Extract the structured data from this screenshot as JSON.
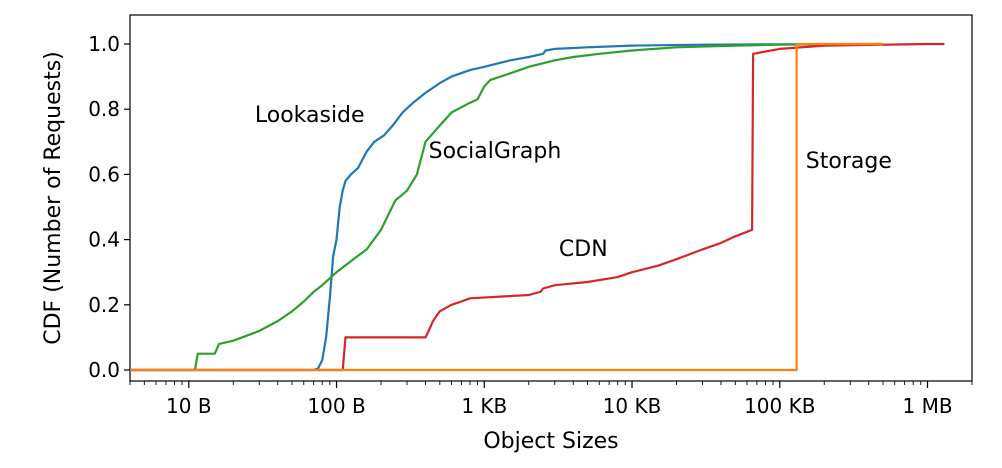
{
  "chart_data": {
    "type": "line",
    "xlabel": "Object Sizes",
    "ylabel": "CDF (Number of Requests)",
    "x_scale": "log",
    "x_unit": "bytes",
    "xlim": [
      4,
      2000000
    ],
    "ylim": [
      0,
      1.0
    ],
    "x_ticks": [
      {
        "value": 10,
        "label": "10 B"
      },
      {
        "value": 100,
        "label": "100 B"
      },
      {
        "value": 1000,
        "label": "1 KB"
      },
      {
        "value": 10000,
        "label": "10 KB"
      },
      {
        "value": 100000,
        "label": "100 KB"
      },
      {
        "value": 1000000,
        "label": "1 MB"
      }
    ],
    "y_ticks": [
      {
        "value": 0.0,
        "label": "0.0"
      },
      {
        "value": 0.2,
        "label": "0.2"
      },
      {
        "value": 0.4,
        "label": "0.4"
      },
      {
        "value": 0.6,
        "label": "0.6"
      },
      {
        "value": 0.8,
        "label": "0.8"
      },
      {
        "value": 1.0,
        "label": "1.0"
      }
    ],
    "grid": false,
    "legend": "none",
    "series": [
      {
        "name": "Lookaside",
        "color": "#1f77b4",
        "label_at": [
          28,
          0.76
        ],
        "points": [
          [
            4,
            0
          ],
          [
            70,
            0
          ],
          [
            75,
            0.005
          ],
          [
            80,
            0.03
          ],
          [
            85,
            0.1
          ],
          [
            90,
            0.22
          ],
          [
            95,
            0.35
          ],
          [
            100,
            0.4
          ],
          [
            105,
            0.5
          ],
          [
            110,
            0.55
          ],
          [
            115,
            0.58
          ],
          [
            125,
            0.6
          ],
          [
            140,
            0.62
          ],
          [
            160,
            0.67
          ],
          [
            180,
            0.7
          ],
          [
            210,
            0.72
          ],
          [
            240,
            0.75
          ],
          [
            280,
            0.79
          ],
          [
            330,
            0.82
          ],
          [
            400,
            0.85
          ],
          [
            500,
            0.88
          ],
          [
            600,
            0.9
          ],
          [
            800,
            0.92
          ],
          [
            1000,
            0.93
          ],
          [
            1500,
            0.95
          ],
          [
            2000,
            0.96
          ],
          [
            2500,
            0.97
          ],
          [
            2600,
            0.98
          ],
          [
            3000,
            0.985
          ],
          [
            5000,
            0.99
          ],
          [
            10000,
            0.995
          ],
          [
            30000,
            0.998
          ],
          [
            100000,
            0.999
          ],
          [
            500000,
            1.0
          ]
        ]
      },
      {
        "name": "SocialGraph",
        "color": "#2ca02c",
        "label_at": [
          420,
          0.65
        ],
        "points": [
          [
            4,
            0
          ],
          [
            11,
            0
          ],
          [
            11.5,
            0.05
          ],
          [
            15,
            0.05
          ],
          [
            16,
            0.08
          ],
          [
            20,
            0.09
          ],
          [
            30,
            0.12
          ],
          [
            40,
            0.15
          ],
          [
            50,
            0.18
          ],
          [
            60,
            0.21
          ],
          [
            70,
            0.24
          ],
          [
            80,
            0.26
          ],
          [
            100,
            0.3
          ],
          [
            130,
            0.34
          ],
          [
            160,
            0.37
          ],
          [
            200,
            0.43
          ],
          [
            250,
            0.52
          ],
          [
            300,
            0.55
          ],
          [
            350,
            0.6
          ],
          [
            400,
            0.7
          ],
          [
            500,
            0.75
          ],
          [
            600,
            0.79
          ],
          [
            800,
            0.82
          ],
          [
            900,
            0.83
          ],
          [
            1000,
            0.87
          ],
          [
            1100,
            0.89
          ],
          [
            1500,
            0.91
          ],
          [
            2000,
            0.93
          ],
          [
            3000,
            0.95
          ],
          [
            4000,
            0.96
          ],
          [
            6000,
            0.97
          ],
          [
            10000,
            0.98
          ],
          [
            20000,
            0.99
          ],
          [
            50000,
            0.995
          ],
          [
            100000,
            0.998
          ],
          [
            500000,
            1.0
          ]
        ]
      },
      {
        "name": "CDN",
        "color": "#d62728",
        "label_at": [
          3200,
          0.35
        ],
        "points": [
          [
            4,
            0
          ],
          [
            110,
            0
          ],
          [
            115,
            0.1
          ],
          [
            400,
            0.1
          ],
          [
            420,
            0.12
          ],
          [
            450,
            0.15
          ],
          [
            500,
            0.18
          ],
          [
            600,
            0.2
          ],
          [
            700,
            0.21
          ],
          [
            800,
            0.22
          ],
          [
            2000,
            0.23
          ],
          [
            2400,
            0.24
          ],
          [
            2500,
            0.25
          ],
          [
            3000,
            0.26
          ],
          [
            5000,
            0.27
          ],
          [
            8000,
            0.285
          ],
          [
            10000,
            0.3
          ],
          [
            15000,
            0.32
          ],
          [
            20000,
            0.34
          ],
          [
            30000,
            0.37
          ],
          [
            40000,
            0.39
          ],
          [
            50000,
            0.41
          ],
          [
            65000,
            0.43
          ],
          [
            66000,
            0.97
          ],
          [
            100000,
            0.985
          ],
          [
            200000,
            0.995
          ],
          [
            500000,
            0.998
          ],
          [
            1000000,
            1.0
          ],
          [
            1300000,
            1.0
          ]
        ]
      },
      {
        "name": "Storage",
        "color": "#ff7f0e",
        "label_at": [
          150000,
          0.62
        ],
        "points": [
          [
            4,
            0
          ],
          [
            130000,
            0
          ],
          [
            130000,
            1.0
          ],
          [
            500000,
            1.0
          ]
        ]
      }
    ]
  }
}
